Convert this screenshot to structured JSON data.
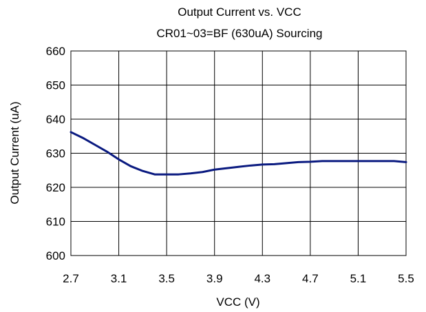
{
  "chart_data": {
    "type": "line",
    "title": "Output Current vs. VCC",
    "subtitle": "CR01~03=BF (630uA) Sourcing",
    "xlabel": "VCC (V)",
    "ylabel": "Output Current (uA)",
    "xlim": [
      2.7,
      5.5
    ],
    "ylim": [
      600,
      660
    ],
    "xticks": [
      "2.7",
      "3.1",
      "3.5",
      "3.9",
      "4.3",
      "4.7",
      "5.1",
      "5.5"
    ],
    "yticks": [
      "600",
      "610",
      "620",
      "630",
      "640",
      "650",
      "660"
    ],
    "grid": true,
    "series_color": "#0a1a80",
    "series": [
      {
        "x": [
          2.7,
          2.8,
          2.9,
          3.0,
          3.1,
          3.2,
          3.3,
          3.4,
          3.5,
          3.6,
          3.7,
          3.8,
          3.9,
          4.0,
          4.1,
          4.2,
          4.3,
          4.4,
          4.5,
          4.6,
          4.7,
          4.8,
          4.9,
          5.0,
          5.1,
          5.2,
          5.3,
          5.4,
          5.5
        ],
        "y": [
          636.2,
          634.5,
          632.5,
          630.5,
          628.2,
          626.2,
          624.8,
          623.8,
          623.8,
          623.8,
          624.1,
          624.5,
          625.2,
          625.6,
          626.0,
          626.4,
          626.7,
          626.8,
          627.1,
          627.4,
          627.5,
          627.7,
          627.7,
          627.7,
          627.7,
          627.7,
          627.7,
          627.7,
          627.4
        ]
      }
    ]
  }
}
